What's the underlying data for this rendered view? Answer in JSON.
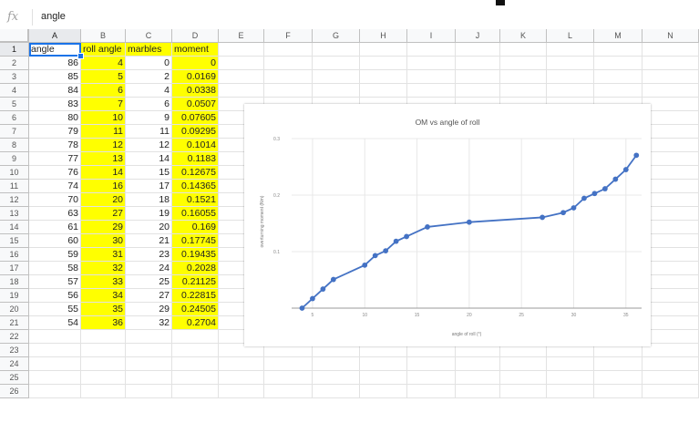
{
  "formula_bar": {
    "fx_icon": "fx",
    "value": "angle"
  },
  "columns": [
    "A",
    "B",
    "C",
    "D",
    "E",
    "F",
    "G",
    "H",
    "I",
    "J",
    "K",
    "L",
    "M",
    "N"
  ],
  "row_numbers": [
    "1",
    "2",
    "3",
    "4",
    "5",
    "6",
    "7",
    "8",
    "9",
    "10",
    "11",
    "12",
    "13",
    "14",
    "15",
    "16",
    "17",
    "18",
    "19",
    "20",
    "21",
    "22",
    "23",
    "24",
    "25",
    "26"
  ],
  "headers": [
    "angle",
    "roll angle",
    "marbles",
    "moment"
  ],
  "rows": [
    [
      "86",
      "4",
      "0",
      "0"
    ],
    [
      "85",
      "5",
      "2",
      "0.0169"
    ],
    [
      "84",
      "6",
      "4",
      "0.0338"
    ],
    [
      "83",
      "7",
      "6",
      "0.0507"
    ],
    [
      "80",
      "10",
      "9",
      "0.07605"
    ],
    [
      "79",
      "11",
      "11",
      "0.09295"
    ],
    [
      "78",
      "12",
      "12",
      "0.1014"
    ],
    [
      "77",
      "13",
      "14",
      "0.1183"
    ],
    [
      "76",
      "14",
      "15",
      "0.12675"
    ],
    [
      "74",
      "16",
      "17",
      "0.14365"
    ],
    [
      "70",
      "20",
      "18",
      "0.1521"
    ],
    [
      "63",
      "27",
      "19",
      "0.16055"
    ],
    [
      "61",
      "29",
      "20",
      "0.169"
    ],
    [
      "60",
      "30",
      "21",
      "0.17745"
    ],
    [
      "59",
      "31",
      "23",
      "0.19435"
    ],
    [
      "58",
      "32",
      "24",
      "0.2028"
    ],
    [
      "57",
      "33",
      "25",
      "0.21125"
    ],
    [
      "56",
      "34",
      "27",
      "0.22815"
    ],
    [
      "55",
      "35",
      "29",
      "0.24505"
    ],
    [
      "54",
      "36",
      "32",
      "0.2704"
    ]
  ],
  "colors": {
    "highlight": "#ffff00",
    "selection": "#1a73e8",
    "series": "#4472c4"
  },
  "chart_data": {
    "type": "line",
    "title": "OM vs angle of roll",
    "xlabel": "angle of roll (°)",
    "ylabel": "overturning moment (Nm)",
    "x": [
      4,
      5,
      6,
      7,
      10,
      11,
      12,
      13,
      14,
      16,
      20,
      27,
      29,
      30,
      31,
      32,
      33,
      34,
      35,
      36
    ],
    "series": [
      {
        "values": [
          0,
          0.0169,
          0.0338,
          0.0507,
          0.07605,
          0.09295,
          0.1014,
          0.1183,
          0.12675,
          0.14365,
          0.1521,
          0.16055,
          0.169,
          0.17745,
          0.19435,
          0.2028,
          0.21125,
          0.22815,
          0.24505,
          0.2704
        ]
      }
    ],
    "xlim": [
      3,
      36.5
    ],
    "ylim": [
      0,
      0.3
    ],
    "xticks": [
      "5",
      "10",
      "15",
      "20",
      "25",
      "30",
      "35"
    ],
    "yticks": [
      "0.1",
      "0.2",
      "0.3"
    ],
    "grid": true,
    "legend": "none"
  }
}
